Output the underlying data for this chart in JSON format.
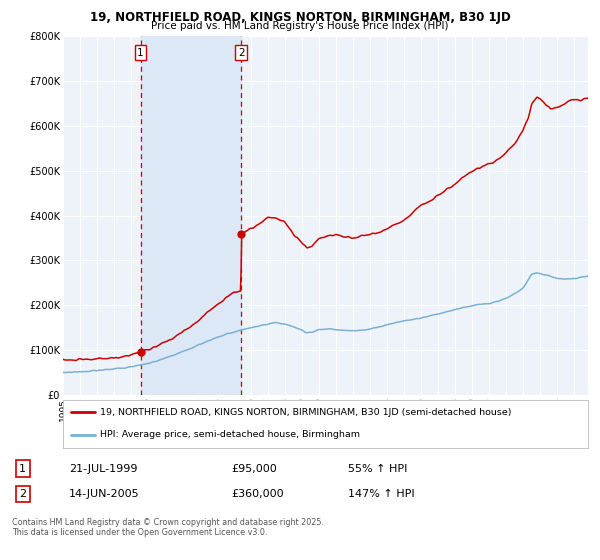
{
  "title_line1": "19, NORTHFIELD ROAD, KINGS NORTON, BIRMINGHAM, B30 1JD",
  "title_line2": "Price paid vs. HM Land Registry's House Price Index (HPI)",
  "ylim": [
    0,
    800000
  ],
  "yticks": [
    0,
    100000,
    200000,
    300000,
    400000,
    500000,
    600000,
    700000,
    800000
  ],
  "ytick_labels": [
    "£0",
    "£100K",
    "£200K",
    "£300K",
    "£400K",
    "£500K",
    "£600K",
    "£700K",
    "£800K"
  ],
  "background_color": "#ffffff",
  "plot_bg_color": "#eef3fa",
  "grid_color": "#ffffff",
  "red_line_color": "#cc0000",
  "blue_line_color": "#7ab0d4",
  "marker_color": "#cc0000",
  "dashed_line_color": "#cc0000",
  "shade_color": "#dce8f5",
  "transaction1_x": 1999.55,
  "transaction1_y": 95000,
  "transaction2_x": 2005.45,
  "transaction2_y": 360000,
  "legend_line1": "19, NORTHFIELD ROAD, KINGS NORTON, BIRMINGHAM, B30 1JD (semi-detached house)",
  "legend_line2": "HPI: Average price, semi-detached house, Birmingham",
  "table_row1": [
    "1",
    "21-JUL-1999",
    "£95,000",
    "55% ↑ HPI"
  ],
  "table_row2": [
    "2",
    "14-JUN-2005",
    "£360,000",
    "147% ↑ HPI"
  ],
  "footer": "Contains HM Land Registry data © Crown copyright and database right 2025.\nThis data is licensed under the Open Government Licence v3.0.",
  "xmin": 1995.0,
  "xmax": 2025.8
}
